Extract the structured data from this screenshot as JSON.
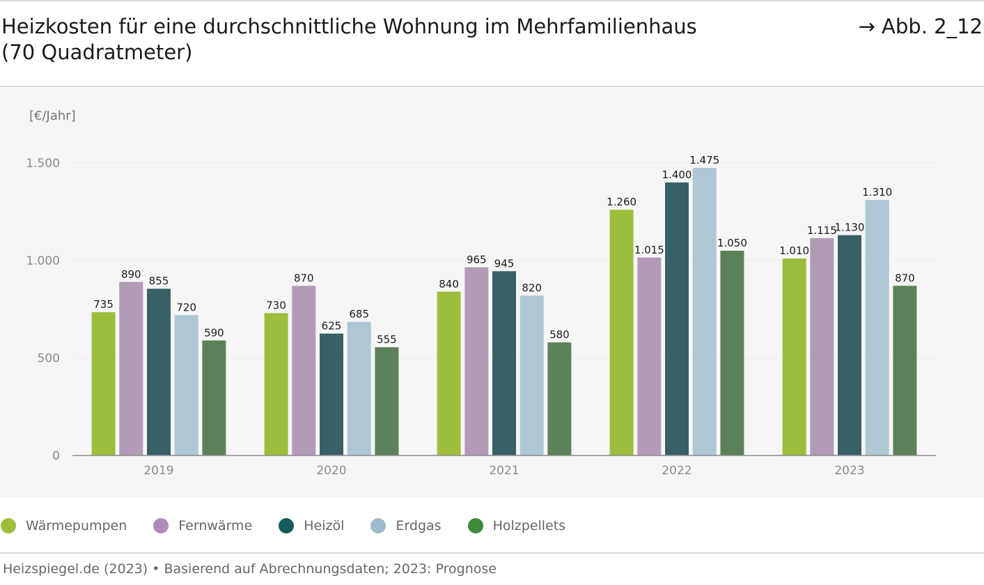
{
  "header": {
    "title_line1": "Heizkosten für eine durchschnittliche Wohnung im Mehrfamilienhaus",
    "title_line2": "(70 Quadratmeter)",
    "figure_ref": "→ Abb. 2_12"
  },
  "footer": {
    "source": "Heizspiegel.de (2023) • Basierend auf Abrechnungsdaten; 2023: Prognose"
  },
  "chart_data": {
    "type": "bar",
    "title": "Heizkosten für eine durchschnittliche Wohnung im Mehrfamilienhaus (70 Quadratmeter)",
    "ylabel": "[€/Jahr]",
    "xlabel": "",
    "ylim": [
      0,
      1500
    ],
    "yticks": [
      0,
      500,
      1000,
      1500
    ],
    "ytick_labels": [
      "0",
      "500",
      "1.000",
      "1.500"
    ],
    "grid": true,
    "legend_position": "bottom-left",
    "categories": [
      "2019",
      "2020",
      "2021",
      "2022",
      "2023"
    ],
    "series": [
      {
        "name": "Wärmepumpen",
        "color": "#9dbe3c",
        "legend_color": "#9dbe3c",
        "values": [
          735,
          730,
          840,
          1260,
          1010
        ],
        "labels": [
          "735",
          "730",
          "840",
          "1.260",
          "1.010"
        ]
      },
      {
        "name": "Fernwärme",
        "color": "#b39bb8",
        "legend_color": "#b08ab8",
        "values": [
          890,
          870,
          965,
          1015,
          1115
        ],
        "labels": [
          "890",
          "870",
          "965",
          "1.015",
          "1.115"
        ]
      },
      {
        "name": "Heizöl",
        "color": "#386166",
        "legend_color": "#175a5a",
        "values": [
          855,
          625,
          945,
          1400,
          1130
        ],
        "labels": [
          "855",
          "625",
          "945",
          "1.400",
          "1.130"
        ]
      },
      {
        "name": "Erdgas",
        "color": "#afc6d4",
        "legend_color": "#9ebbcc",
        "values": [
          720,
          685,
          820,
          1475,
          1310
        ],
        "labels": [
          "720",
          "685",
          "820",
          "1.475",
          "1.310"
        ]
      },
      {
        "name": "Holzpellets",
        "color": "#5c8158",
        "legend_color": "#3f8a3c",
        "values": [
          590,
          555,
          580,
          1050,
          870
        ],
        "labels": [
          "590",
          "555",
          "580",
          "1.050",
          "870"
        ]
      }
    ]
  }
}
